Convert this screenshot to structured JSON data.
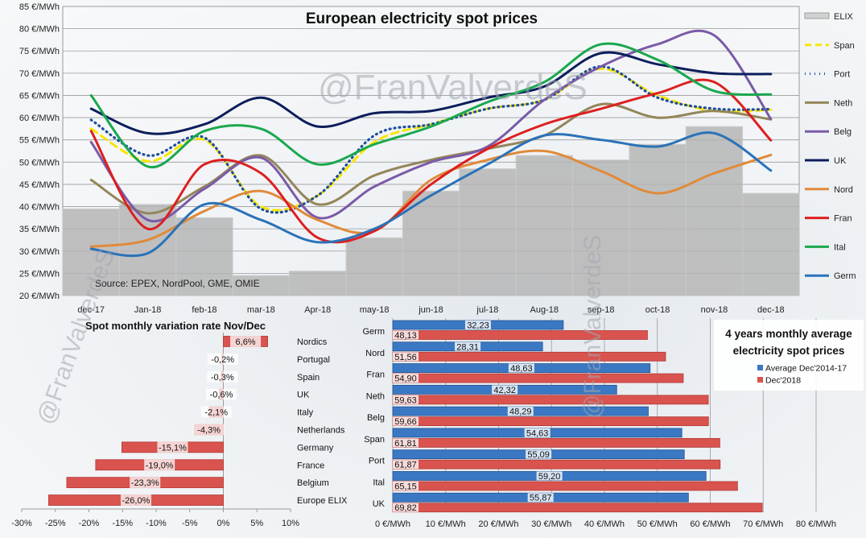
{
  "watermark": "@FranValverdeS",
  "top_chart": {
    "title": "European electricity spot prices",
    "source": "Source: EPEX, NordPool, GME, OMIE"
  },
  "chart_data": [
    {
      "type": "line",
      "title": "European electricity spot prices",
      "note": "Source: EPEX, NordPool, GME, OMIE",
      "categories": [
        "dec-17",
        "Jan-18",
        "feb-18",
        "mar-18",
        "Apr-18",
        "may-18",
        "jun-18",
        "jul-18",
        "Aug-18",
        "sep-18",
        "oct-18",
        "nov-18",
        "dec-18"
      ],
      "y_tick_labels": [
        "20 €/MWh",
        "25 €/MWh",
        "30 €/MWh",
        "35 €/MWh",
        "40 €/MWh",
        "45 €/MWh",
        "50 €/MWh",
        "55 €/MWh",
        "60 €/MWh",
        "65 €/MWh",
        "70 €/MWh",
        "75 €/MWh",
        "80 €/MWh",
        "85 €/MWh"
      ],
      "ylim": [
        20,
        85
      ],
      "grid": true,
      "legend_position": "right",
      "bar_series": {
        "name": "ELIX",
        "values": [
          39.5,
          40.5,
          37.5,
          24.5,
          25.5,
          33,
          43.5,
          48.5,
          51.5,
          50.5,
          54,
          58,
          43
        ],
        "color": "#b4b4b4"
      },
      "series": [
        {
          "name": "Span",
          "values": [
            57.5,
            50.2,
            55,
            40,
            42.5,
            54.5,
            58.5,
            62,
            64,
            71,
            65,
            61.5,
            61.8
          ],
          "color": "#f7e600",
          "style": "dashed"
        },
        {
          "name": "Port",
          "values": [
            59.5,
            51.5,
            55.5,
            39.5,
            42.5,
            56,
            58.5,
            62,
            64,
            71.5,
            64.5,
            62,
            61.9
          ],
          "color": "#1f4e9c",
          "style": "dotted"
        },
        {
          "name": "Neth",
          "values": [
            46,
            38.5,
            44.5,
            51.5,
            40.5,
            47,
            50.5,
            53,
            56,
            63,
            60,
            61.5,
            59.6
          ],
          "color": "#93865a",
          "style": "solid"
        },
        {
          "name": "Belg",
          "values": [
            54.5,
            37,
            44,
            51,
            37.5,
            44.5,
            50,
            53.5,
            64,
            71.5,
            76.5,
            78.5,
            59.7
          ],
          "color": "#7a5aa8",
          "style": "solid"
        },
        {
          "name": "UK",
          "values": [
            62,
            56.5,
            58.5,
            64.5,
            58,
            61,
            61.5,
            64.5,
            67,
            74.5,
            72,
            70,
            69.8
          ],
          "color": "#0d1e5c",
          "style": "solid"
        },
        {
          "name": "Nord",
          "values": [
            31,
            32.5,
            39,
            43.5,
            37,
            34.5,
            46,
            50.5,
            52.5,
            48,
            43,
            47.5,
            51.6
          ],
          "color": "#e08a3a",
          "style": "solid"
        },
        {
          "name": "Fran",
          "values": [
            57,
            35,
            49.5,
            47.5,
            33,
            34.5,
            45,
            53,
            58.5,
            62,
            65.5,
            68,
            54.9
          ],
          "color": "#dd1f1f",
          "style": "solid"
        },
        {
          "name": "Ital",
          "values": [
            65,
            49,
            57,
            57.5,
            49.5,
            54,
            58,
            63.5,
            68,
            76.5,
            73,
            66,
            65.2
          ],
          "color": "#1aa84e",
          "style": "solid"
        },
        {
          "name": "Germ",
          "values": [
            30.5,
            29.5,
            40.5,
            37,
            32,
            35,
            42.5,
            49.5,
            56,
            55,
            53.5,
            56.5,
            48.1
          ],
          "color": "#2a72b8",
          "style": "solid"
        }
      ]
    },
    {
      "type": "bar",
      "orientation": "horizontal",
      "title": "Spot monthly variation rate Nov/Dec",
      "categories": [
        "Nordics",
        "Portugal",
        "Spain",
        "UK",
        "Italy",
        "Netherlands",
        "Germany",
        "France",
        "Belgium",
        "Europe ELIX"
      ],
      "values": [
        6.6,
        -0.2,
        -0.3,
        -0.6,
        -2.1,
        -4.3,
        -15.1,
        -19.0,
        -23.3,
        -26.0
      ],
      "labels": [
        "6,6%",
        "-0,2%",
        "-0,3%",
        "-0,6%",
        "-2,1%",
        "-4,3%",
        "-15,1%",
        "-19,0%",
        "-23,3%",
        "-26,0%"
      ],
      "x_tick_labels": [
        "-30%",
        "-25%",
        "-20%",
        "-15%",
        "-10%",
        "-5%",
        "0%",
        "5%",
        "10%"
      ],
      "xlim": [
        -30,
        10
      ],
      "color": "#d9534f"
    },
    {
      "type": "bar",
      "orientation": "horizontal",
      "title": "4 years monthly average electricity spot prices",
      "categories": [
        "Germ",
        "Nord",
        "Fran",
        "Neth",
        "Belg",
        "Span",
        "Port",
        "Ital",
        "UK"
      ],
      "series": [
        {
          "name": "Average Dec'2014-17",
          "values": [
            32.23,
            28.31,
            48.63,
            42.32,
            48.29,
            54.63,
            55.09,
            59.2,
            55.87
          ],
          "labels": [
            "32,23",
            "28,31",
            "48,63",
            "42,32",
            "48,29",
            "54,63",
            "55,09",
            "59,20",
            "55,87"
          ],
          "color": "#3b78c4"
        },
        {
          "name": "Dec'2018",
          "values": [
            48.13,
            51.56,
            54.9,
            59.63,
            59.66,
            61.81,
            61.87,
            65.15,
            69.82
          ],
          "labels": [
            "48,13",
            "51,56",
            "54,90",
            "59,63",
            "59,66",
            "61,81",
            "61,87",
            "65,15",
            "69,82"
          ],
          "color": "#d9534f"
        }
      ],
      "x_tick_labels": [
        "0 €/MWh",
        "10 €/MWh",
        "20 €/MWh",
        "30 €/MWh",
        "40 €/MWh",
        "50 €/MWh",
        "60 €/MWh",
        "70 €/MWh",
        "80 €/MWh"
      ],
      "xlim": [
        0,
        80
      ]
    }
  ]
}
